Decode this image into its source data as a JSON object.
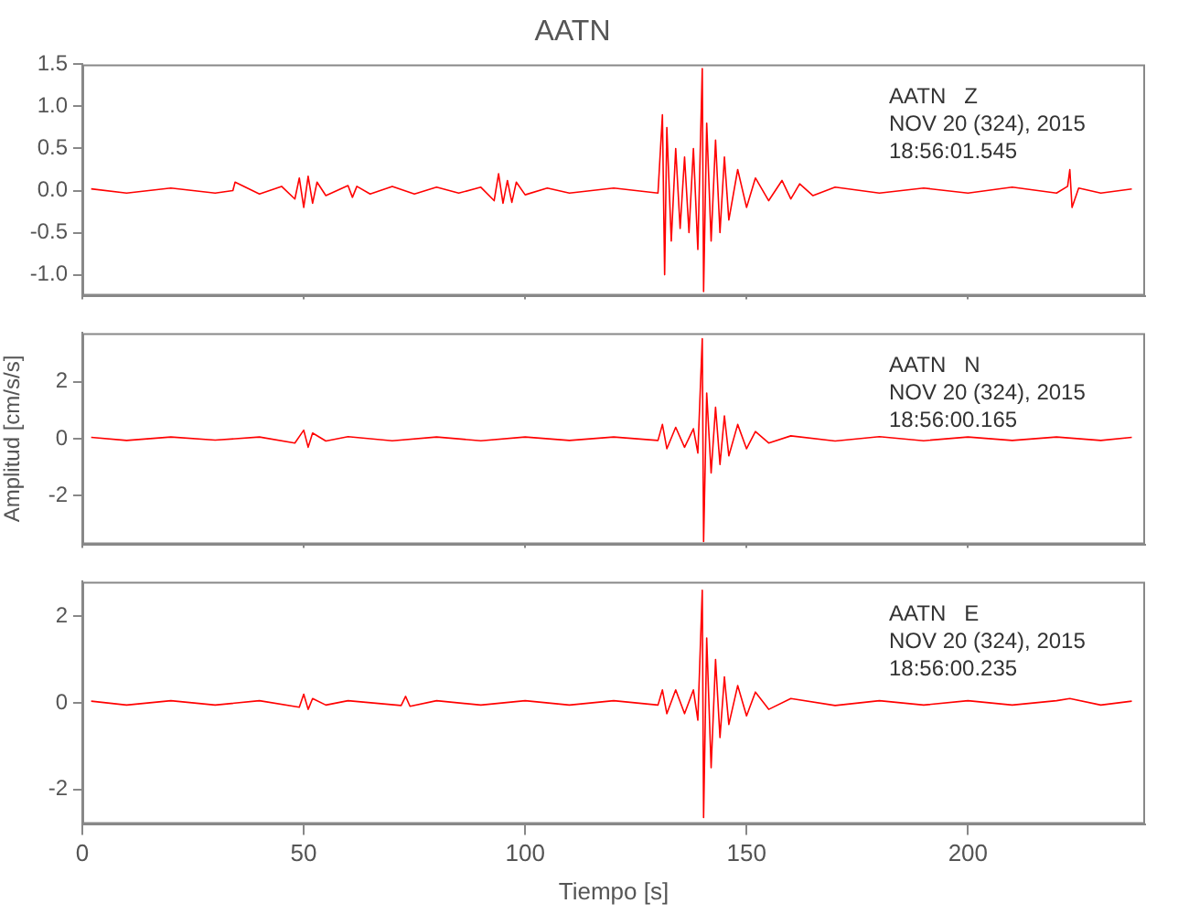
{
  "chart_data": [
    {
      "type": "line",
      "title": "AATN",
      "annotations": [
        "AATN   Z",
        "NOV 20 (324), 2015",
        "18:56:01.545"
      ],
      "tick_labels": "y",
      "xlim": [
        0,
        240
      ],
      "xticks": [
        0,
        50,
        100,
        150,
        200
      ],
      "ylim": [
        -1.25,
        1.5
      ],
      "yticks": [
        {
          "value": -1.0,
          "label": "-1.0"
        },
        {
          "value": -0.5,
          "label": "-0.5"
        },
        {
          "value": 0,
          "label": "0.0"
        },
        {
          "value": 0.5,
          "label": "0.5"
        },
        {
          "value": 1.0,
          "label": "1.0"
        },
        {
          "value": 1.5,
          "label": "1.5"
        }
      ],
      "series": [
        {
          "color": "#ff0000",
          "x": [
            2,
            10,
            20,
            30,
            34,
            34.5,
            40,
            45,
            48,
            49,
            50,
            51,
            52,
            53,
            55,
            60,
            61,
            62,
            65,
            70,
            75,
            80,
            85,
            90,
            93,
            94,
            95,
            96,
            97,
            98,
            100,
            105,
            110,
            120,
            130,
            131,
            131.5,
            132,
            133,
            134,
            135,
            136,
            137,
            138,
            139,
            140,
            140.3,
            141,
            142,
            143,
            144,
            145,
            146,
            148,
            150,
            152,
            155,
            158,
            160,
            162,
            165,
            170,
            180,
            190,
            200,
            210,
            220,
            222.5,
            223,
            223.5,
            225,
            230,
            237
          ],
          "values": [
            0.02,
            -0.03,
            0.03,
            -0.03,
            0.0,
            0.1,
            -0.04,
            0.05,
            -0.1,
            0.15,
            -0.2,
            0.17,
            -0.15,
            0.1,
            -0.06,
            0.06,
            -0.08,
            0.05,
            -0.04,
            0.05,
            -0.04,
            0.04,
            -0.03,
            0.04,
            -0.12,
            0.2,
            -0.15,
            0.12,
            -0.14,
            0.1,
            -0.05,
            0.03,
            -0.03,
            0.03,
            -0.03,
            0.9,
            -1.0,
            0.75,
            -0.6,
            0.5,
            -0.45,
            0.4,
            -0.5,
            0.5,
            -0.7,
            1.45,
            -1.2,
            0.8,
            -0.6,
            0.6,
            -0.5,
            0.4,
            -0.35,
            0.25,
            -0.2,
            0.15,
            -0.12,
            0.12,
            -0.1,
            0.08,
            -0.06,
            0.04,
            -0.03,
            0.03,
            -0.03,
            0.04,
            -0.03,
            0.05,
            0.25,
            -0.2,
            0.03,
            -0.03,
            0.02
          ]
        }
      ]
    },
    {
      "type": "line",
      "ylabel": "Amplitud [cm/s/s]",
      "annotations": [
        "AATN   N",
        "NOV 20 (324), 2015",
        "18:56:00.165"
      ],
      "tick_labels": "y",
      "xlim": [
        0,
        240
      ],
      "xticks": [
        0,
        50,
        100,
        150,
        200
      ],
      "ylim": [
        -3.7,
        3.7
      ],
      "yticks": [
        -2,
        0,
        2
      ],
      "series": [
        {
          "color": "#ff0000",
          "x": [
            2,
            10,
            20,
            30,
            40,
            48,
            50,
            51,
            52,
            55,
            60,
            70,
            80,
            90,
            100,
            110,
            120,
            130,
            131,
            132,
            134,
            136,
            138,
            139,
            140,
            140.3,
            141,
            142,
            143,
            144,
            145,
            146,
            148,
            150,
            152,
            155,
            160,
            170,
            180,
            190,
            200,
            210,
            220,
            230,
            237
          ],
          "values": [
            0.05,
            -0.06,
            0.06,
            -0.05,
            0.06,
            -0.15,
            0.3,
            -0.3,
            0.2,
            -0.08,
            0.07,
            -0.07,
            0.06,
            -0.07,
            0.06,
            -0.06,
            0.06,
            -0.06,
            0.5,
            -0.35,
            0.4,
            -0.3,
            0.35,
            -0.5,
            3.5,
            -3.6,
            1.6,
            -1.2,
            1.1,
            -0.9,
            0.8,
            -0.6,
            0.5,
            -0.35,
            0.25,
            -0.15,
            0.1,
            -0.08,
            0.07,
            -0.07,
            0.06,
            -0.06,
            0.06,
            -0.06,
            0.05
          ]
        }
      ]
    },
    {
      "type": "line",
      "xlabel": "Tiempo [s]",
      "annotations": [
        "AATN   E",
        "NOV 20 (324), 2015",
        "18:56:00.235"
      ],
      "xlim": [
        0,
        240
      ],
      "xticks": [
        0,
        50,
        100,
        150,
        200
      ],
      "ylim": [
        -2.8,
        2.8
      ],
      "yticks": [
        -2,
        0,
        2
      ],
      "series": [
        {
          "color": "#ff0000",
          "x": [
            2,
            10,
            20,
            30,
            40,
            49,
            50,
            51,
            52,
            55,
            60,
            72,
            73,
            74,
            80,
            90,
            100,
            110,
            120,
            130,
            131,
            132,
            134,
            136,
            138,
            139,
            140,
            140.3,
            141,
            142,
            143,
            144,
            145,
            146,
            148,
            150,
            152,
            155,
            160,
            170,
            180,
            190,
            200,
            210,
            220,
            223,
            230,
            237
          ],
          "values": [
            0.04,
            -0.05,
            0.05,
            -0.05,
            0.05,
            -0.1,
            0.2,
            -0.15,
            0.1,
            -0.05,
            0.05,
            -0.06,
            0.15,
            -0.08,
            0.05,
            -0.05,
            0.05,
            -0.05,
            0.05,
            -0.05,
            0.3,
            -0.25,
            0.3,
            -0.25,
            0.3,
            -0.4,
            2.6,
            -2.65,
            1.5,
            -1.5,
            1.0,
            -0.8,
            0.6,
            -0.5,
            0.4,
            -0.3,
            0.25,
            -0.15,
            0.1,
            -0.06,
            0.05,
            -0.05,
            0.05,
            -0.05,
            0.05,
            0.1,
            -0.05,
            0.04
          ]
        }
      ]
    }
  ]
}
